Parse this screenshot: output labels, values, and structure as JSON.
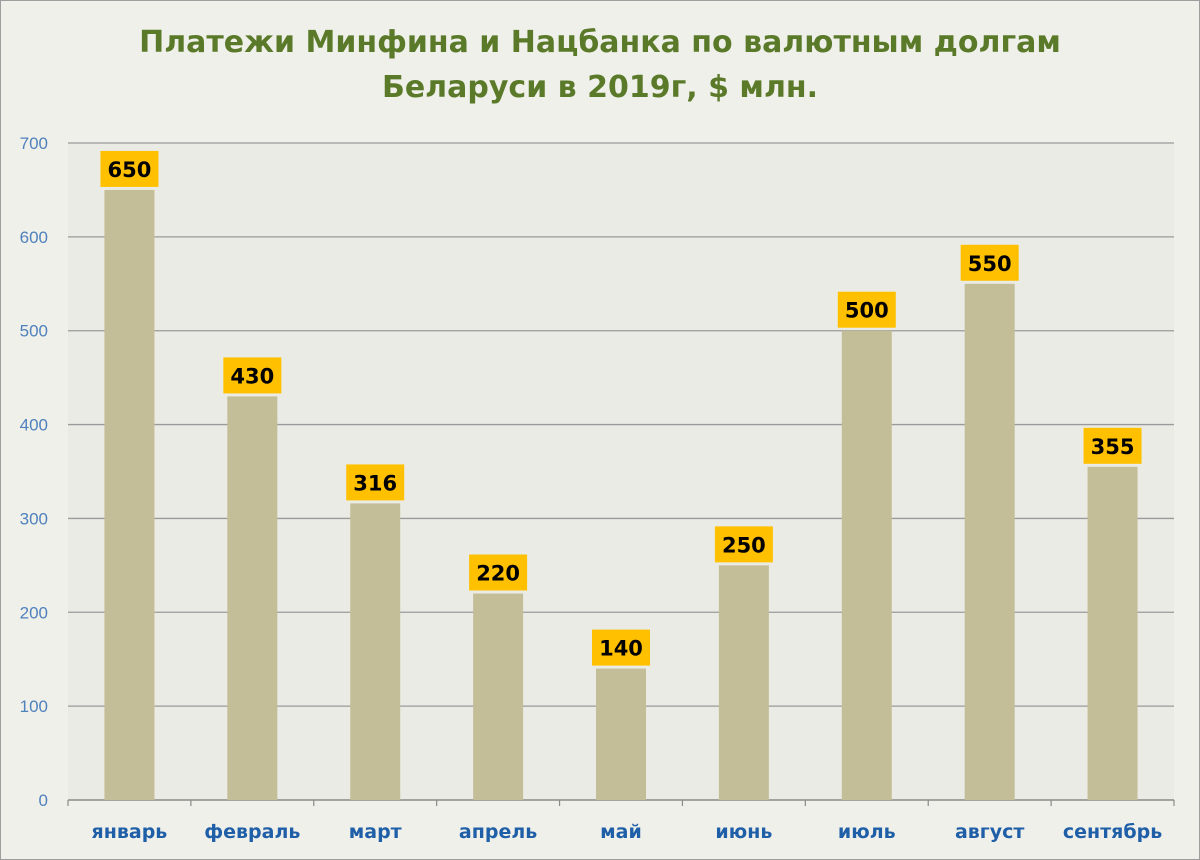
{
  "chart_data": {
    "type": "bar",
    "title_lines": [
      "Платежи Минфина и Нацбанка по валютным долгам",
      "Беларуси в 2019г, $ млн."
    ],
    "xlabel": "",
    "ylabel": "",
    "categories": [
      "январь",
      "февраль",
      "март",
      "апрель",
      "май",
      "июнь",
      "июль",
      "август",
      "сентябрь"
    ],
    "values": [
      650,
      430,
      316,
      220,
      140,
      250,
      500,
      550,
      355
    ],
    "data_labels": [
      "650",
      "430",
      "316",
      "220",
      "140",
      "250",
      "500",
      "550",
      "355"
    ],
    "ylim": [
      0,
      700
    ],
    "yticks": [
      0,
      100,
      200,
      300,
      400,
      500,
      600,
      700
    ],
    "grid": true,
    "legend": "none",
    "colors": {
      "bar": "#c4be98",
      "label_box": "#ffc000",
      "plot_bg": "#ebebe5",
      "title": "#5a7a2a",
      "axis_text": "#4f81bd",
      "category_text": "#1f5fa8"
    }
  }
}
